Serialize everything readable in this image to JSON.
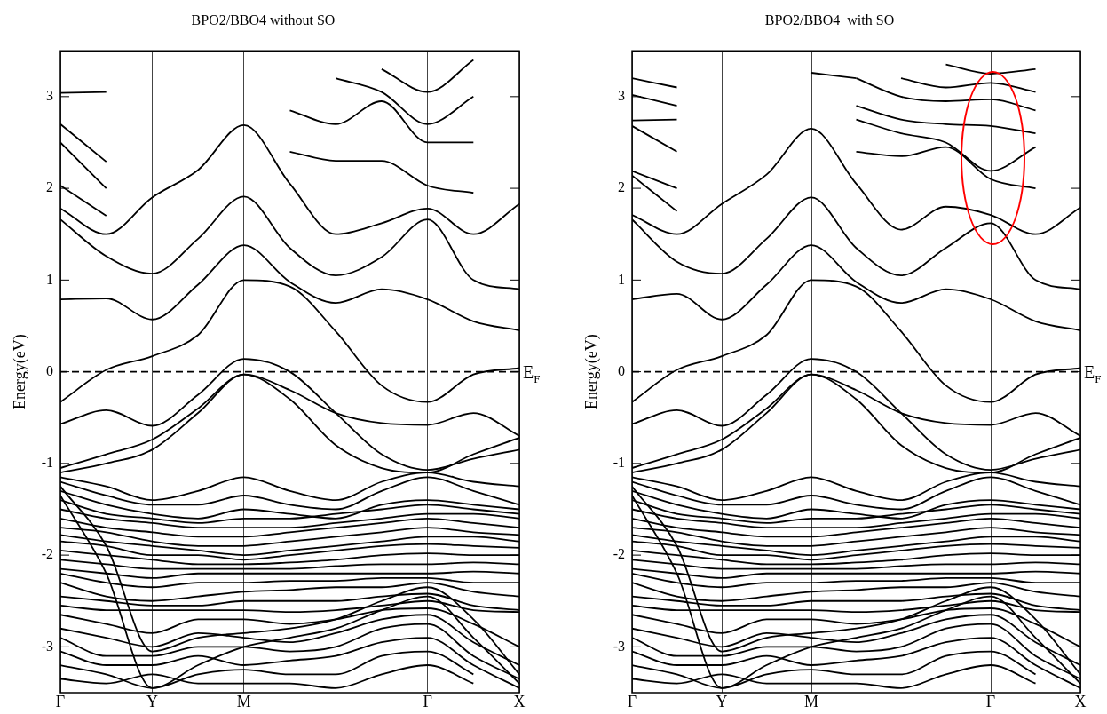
{
  "chart_data": [
    {
      "type": "line",
      "title": "BPO2/BBO4 without SO",
      "ylabel": "Energy(eV)",
      "categories": [
        "Γ",
        null,
        "Y",
        null,
        "M",
        null,
        null,
        null,
        "Γ",
        null,
        "X"
      ],
      "ylim": [
        -3.5,
        3.5
      ],
      "yticks": [
        -3,
        -2,
        -1,
        0,
        1,
        2,
        3
      ],
      "grid": "x",
      "legend": false,
      "marker": "none",
      "ref_lines": [
        {
          "axis": "y",
          "value": 0,
          "label": "E$_{F}$",
          "line_style": "dashed",
          "color": "#000000"
        }
      ],
      "series": [
        {
          "color": "#000000",
          "values": [
            -0.33,
            0.02,
            0.17,
            0.4,
            1.0,
            0.93,
            0.44,
            -0.15,
            -0.33,
            -0.03,
            0.04
          ]
        },
        {
          "color": "#000000",
          "values": [
            0.79,
            0.8,
            0.57,
            0.95,
            1.38,
            0.98,
            0.75,
            0.9,
            0.79,
            0.55,
            0.45
          ]
        },
        {
          "color": "#000000",
          "values": [
            1.66,
            1.26,
            1.07,
            1.45,
            1.91,
            1.35,
            1.05,
            1.25,
            1.66,
            1.0,
            0.9
          ]
        },
        {
          "color": "#000000",
          "values": [
            1.78,
            1.5,
            1.9,
            2.2,
            2.69,
            2.05,
            1.5,
            1.62,
            1.78,
            1.5,
            1.83
          ]
        },
        {
          "color": "#000000",
          "values": [
            2.03,
            1.7,
            null,
            null,
            null,
            2.4,
            2.3,
            2.3,
            2.03,
            1.95,
            null
          ]
        },
        {
          "color": "#000000",
          "values": [
            2.5,
            2.0,
            null,
            null,
            null,
            2.85,
            2.7,
            2.95,
            2.5,
            2.5,
            null
          ]
        },
        {
          "color": "#000000",
          "values": [
            2.7,
            2.29,
            null,
            null,
            null,
            null,
            3.2,
            3.05,
            2.7,
            3.0,
            null
          ]
        },
        {
          "color": "#000000",
          "values": [
            3.04,
            3.05,
            null,
            null,
            null,
            null,
            null,
            3.3,
            3.05,
            3.4,
            null
          ]
        },
        {
          "color": "#000000",
          "values": [
            -0.57,
            -0.42,
            -0.59,
            -0.25,
            0.14,
            0.0,
            -0.45,
            -0.9,
            -1.07,
            -0.95,
            -0.85
          ]
        },
        {
          "color": "#000000",
          "values": [
            -1.05,
            -0.9,
            -0.74,
            -0.4,
            -0.03,
            -0.3,
            -0.8,
            -1.05,
            -1.1,
            -0.9,
            -0.72
          ]
        },
        {
          "color": "#000000",
          "values": [
            -1.1,
            -1.0,
            -0.85,
            -0.45,
            -0.03,
            -0.2,
            -0.45,
            -0.56,
            -0.58,
            -0.45,
            -0.7
          ]
        },
        {
          "color": "#000000",
          "values": [
            -1.15,
            -1.25,
            -1.4,
            -1.3,
            -1.15,
            -1.3,
            -1.4,
            -1.2,
            -1.1,
            -1.2,
            -1.25
          ]
        },
        {
          "color": "#000000",
          "values": [
            -1.2,
            -1.35,
            -1.45,
            -1.45,
            -1.35,
            -1.45,
            -1.5,
            -1.3,
            -1.15,
            -1.3,
            -1.45
          ]
        },
        {
          "color": "#000000",
          "values": [
            -1.3,
            -1.45,
            -1.55,
            -1.6,
            -1.5,
            -1.55,
            -1.6,
            -1.45,
            -1.4,
            -1.45,
            -1.5
          ]
        },
        {
          "color": "#000000",
          "values": [
            -1.4,
            -1.55,
            -1.6,
            -1.65,
            -1.6,
            -1.6,
            -1.55,
            -1.5,
            -1.45,
            -1.5,
            -1.55
          ]
        },
        {
          "color": "#000000",
          "values": [
            -1.5,
            -1.6,
            -1.65,
            -1.7,
            -1.7,
            -1.7,
            -1.65,
            -1.6,
            -1.55,
            -1.55,
            -1.6
          ]
        },
        {
          "color": "#000000",
          "values": [
            -1.6,
            -1.7,
            -1.75,
            -1.8,
            -1.8,
            -1.75,
            -1.7,
            -1.65,
            -1.6,
            -1.65,
            -1.7
          ]
        },
        {
          "color": "#000000",
          "values": [
            -1.7,
            -1.75,
            -1.85,
            -1.9,
            -1.9,
            -1.85,
            -1.8,
            -1.75,
            -1.7,
            -1.75,
            -1.78
          ]
        },
        {
          "color": "#000000",
          "values": [
            -1.78,
            -1.85,
            -1.9,
            -1.95,
            -2.0,
            -1.95,
            -1.9,
            -1.85,
            -1.8,
            -1.8,
            -1.85
          ]
        },
        {
          "color": "#000000",
          "values": [
            -1.85,
            -1.9,
            -2.0,
            -2.0,
            -2.05,
            -2.0,
            -1.95,
            -1.9,
            -1.88,
            -1.9,
            -1.92
          ]
        },
        {
          "color": "#000000",
          "values": [
            -1.95,
            -2.0,
            -2.05,
            -2.1,
            -2.1,
            -2.08,
            -2.05,
            -2.0,
            -1.98,
            -2.0,
            -2.0
          ]
        },
        {
          "color": "#000000",
          "values": [
            -2.05,
            -2.1,
            -2.15,
            -2.15,
            -2.15,
            -2.15,
            -2.12,
            -2.1,
            -2.1,
            -2.08,
            -2.1
          ]
        },
        {
          "color": "#000000",
          "values": [
            -2.15,
            -2.2,
            -2.25,
            -2.2,
            -2.2,
            -2.2,
            -2.2,
            -2.2,
            -2.2,
            -2.18,
            -2.2
          ]
        },
        {
          "color": "#000000",
          "values": [
            -2.2,
            -2.3,
            -2.35,
            -2.3,
            -2.3,
            -2.28,
            -2.28,
            -2.25,
            -2.25,
            -2.3,
            -2.3
          ]
        },
        {
          "color": "#000000",
          "values": [
            -2.3,
            -2.45,
            -2.5,
            -2.45,
            -2.4,
            -2.38,
            -2.35,
            -2.35,
            -2.3,
            -2.4,
            -2.45
          ]
        },
        {
          "color": "#000000",
          "values": [
            -2.45,
            -2.5,
            -2.55,
            -2.55,
            -2.5,
            -2.5,
            -2.5,
            -2.45,
            -2.42,
            -2.55,
            -2.6
          ]
        },
        {
          "color": "#000000",
          "values": [
            -2.55,
            -2.6,
            -2.6,
            -2.6,
            -2.6,
            -2.62,
            -2.6,
            -2.55,
            -2.5,
            -2.6,
            -2.62
          ]
        },
        {
          "color": "#000000",
          "values": [
            -2.65,
            -2.75,
            -2.85,
            -2.7,
            -2.7,
            -2.75,
            -2.7,
            -2.6,
            -2.58,
            -2.75,
            -3.0
          ]
        },
        {
          "color": "#000000",
          "values": [
            -2.8,
            -2.9,
            -3.0,
            -2.85,
            -2.9,
            -2.95,
            -2.85,
            -2.7,
            -2.65,
            -2.95,
            -3.2
          ]
        },
        {
          "color": "#000000",
          "values": [
            -2.9,
            -3.1,
            -3.1,
            -3.0,
            -3.0,
            -3.05,
            -3.0,
            -2.8,
            -2.75,
            -3.1,
            -3.35
          ]
        },
        {
          "color": "#000000",
          "values": [
            -3.05,
            -3.2,
            -3.2,
            -3.1,
            -3.2,
            -3.15,
            -3.1,
            -2.95,
            -2.9,
            -3.2,
            -3.45
          ]
        },
        {
          "color": "#000000",
          "values": [
            -3.2,
            -3.3,
            -3.45,
            -3.3,
            -3.25,
            -3.3,
            -3.3,
            -3.1,
            -3.05,
            -3.3,
            null
          ]
        },
        {
          "color": "#000000",
          "values": [
            -3.35,
            -3.4,
            -3.3,
            -3.4,
            -3.4,
            -3.4,
            -3.45,
            -3.3,
            -3.2,
            -3.4,
            null
          ]
        },
        {
          "color": "#000000",
          "values": [
            -1.35,
            -2.2,
            -3.45,
            -3.2,
            -3.0,
            -2.9,
            -2.8,
            -2.6,
            -2.45,
            -2.9,
            -3.4
          ]
        },
        {
          "color": "#000000",
          "values": [
            -1.25,
            -1.9,
            -3.05,
            -2.9,
            -2.85,
            -2.8,
            -2.7,
            -2.5,
            -2.35,
            -2.7,
            -3.3
          ]
        }
      ]
    },
    {
      "type": "line",
      "title": "BPO2/BBO4  with SO",
      "ylabel": "Energy(eV)",
      "categories": [
        "Γ",
        null,
        "Y",
        null,
        "M",
        null,
        null,
        null,
        "Γ",
        null,
        "X"
      ],
      "ylim": [
        -3.5,
        3.5
      ],
      "yticks": [
        -3,
        -2,
        -1,
        0,
        1,
        2,
        3
      ],
      "grid": "x",
      "legend": false,
      "marker": "none",
      "ref_lines": [
        {
          "axis": "y",
          "value": 0,
          "label": "E$_{F}$",
          "line_style": "dashed",
          "color": "#000000"
        }
      ],
      "series": [
        {
          "color": "#000000",
          "values": [
            -0.33,
            0.02,
            0.17,
            0.4,
            1.0,
            0.93,
            0.44,
            -0.15,
            -0.33,
            -0.03,
            0.04
          ]
        },
        {
          "color": "#000000",
          "values": [
            0.79,
            0.85,
            0.57,
            0.95,
            1.38,
            0.98,
            0.75,
            0.9,
            0.79,
            0.55,
            0.45
          ]
        },
        {
          "color": "#000000",
          "values": [
            1.66,
            1.2,
            1.07,
            1.45,
            1.9,
            1.35,
            1.05,
            1.35,
            1.62,
            1.0,
            0.9
          ]
        },
        {
          "color": "#000000",
          "values": [
            1.71,
            1.5,
            1.83,
            2.15,
            2.65,
            2.05,
            1.55,
            1.8,
            1.71,
            1.5,
            1.79
          ]
        },
        {
          "color": "#000000",
          "values": [
            2.14,
            1.75,
            null,
            null,
            null,
            2.4,
            2.35,
            2.45,
            2.1,
            2.0,
            null
          ]
        },
        {
          "color": "#000000",
          "values": [
            2.19,
            2.0,
            null,
            null,
            null,
            2.75,
            2.6,
            2.5,
            2.19,
            2.45,
            null
          ]
        },
        {
          "color": "#000000",
          "values": [
            2.68,
            2.4,
            null,
            null,
            null,
            2.9,
            2.75,
            2.7,
            2.68,
            2.6,
            null
          ]
        },
        {
          "color": "#000000",
          "values": [
            2.74,
            2.75,
            null,
            null,
            null,
            3.2,
            3.0,
            2.95,
            2.97,
            2.85,
            null
          ]
        },
        {
          "color": "#000000",
          "values": [
            3.02,
            2.9,
            null,
            null,
            null,
            null,
            3.2,
            3.1,
            3.15,
            3.05,
            null
          ]
        },
        {
          "color": "#000000",
          "values": [
            3.2,
            3.1,
            null,
            null,
            3.26,
            3.2,
            null,
            3.35,
            3.25,
            3.3,
            null
          ]
        },
        {
          "color": "#000000",
          "values": [
            -0.57,
            -0.42,
            -0.59,
            -0.25,
            0.14,
            0.0,
            -0.45,
            -0.9,
            -1.07,
            -0.95,
            -0.85
          ]
        },
        {
          "color": "#000000",
          "values": [
            -1.05,
            -0.9,
            -0.74,
            -0.4,
            -0.03,
            -0.3,
            -0.8,
            -1.05,
            -1.1,
            -0.9,
            -0.72
          ]
        },
        {
          "color": "#000000",
          "values": [
            -1.1,
            -1.0,
            -0.85,
            -0.45,
            -0.03,
            -0.2,
            -0.45,
            -0.56,
            -0.58,
            -0.45,
            -0.7
          ]
        },
        {
          "color": "#000000",
          "values": [
            -1.15,
            -1.25,
            -1.4,
            -1.3,
            -1.15,
            -1.3,
            -1.4,
            -1.2,
            -1.1,
            -1.2,
            -1.25
          ]
        },
        {
          "color": "#000000",
          "values": [
            -1.2,
            -1.35,
            -1.45,
            -1.45,
            -1.35,
            -1.45,
            -1.5,
            -1.3,
            -1.15,
            -1.3,
            -1.45
          ]
        },
        {
          "color": "#000000",
          "values": [
            -1.3,
            -1.45,
            -1.55,
            -1.6,
            -1.5,
            -1.55,
            -1.6,
            -1.45,
            -1.4,
            -1.45,
            -1.5
          ]
        },
        {
          "color": "#000000",
          "values": [
            -1.4,
            -1.55,
            -1.6,
            -1.65,
            -1.6,
            -1.6,
            -1.55,
            -1.5,
            -1.45,
            -1.5,
            -1.55
          ]
        },
        {
          "color": "#000000",
          "values": [
            -1.5,
            -1.6,
            -1.65,
            -1.7,
            -1.7,
            -1.7,
            -1.65,
            -1.6,
            -1.55,
            -1.55,
            -1.6
          ]
        },
        {
          "color": "#000000",
          "values": [
            -1.6,
            -1.7,
            -1.75,
            -1.8,
            -1.8,
            -1.75,
            -1.7,
            -1.65,
            -1.6,
            -1.65,
            -1.7
          ]
        },
        {
          "color": "#000000",
          "values": [
            -1.7,
            -1.75,
            -1.85,
            -1.9,
            -1.9,
            -1.85,
            -1.8,
            -1.75,
            -1.7,
            -1.75,
            -1.78
          ]
        },
        {
          "color": "#000000",
          "values": [
            -1.78,
            -1.85,
            -1.9,
            -1.95,
            -2.0,
            -1.95,
            -1.9,
            -1.85,
            -1.8,
            -1.8,
            -1.85
          ]
        },
        {
          "color": "#000000",
          "values": [
            -1.85,
            -1.9,
            -2.0,
            -2.0,
            -2.05,
            -2.0,
            -1.95,
            -1.9,
            -1.88,
            -1.9,
            -1.92
          ]
        },
        {
          "color": "#000000",
          "values": [
            -1.95,
            -2.0,
            -2.05,
            -2.1,
            -2.1,
            -2.08,
            -2.05,
            -2.0,
            -1.98,
            -2.0,
            -2.0
          ]
        },
        {
          "color": "#000000",
          "values": [
            -2.05,
            -2.1,
            -2.15,
            -2.15,
            -2.15,
            -2.15,
            -2.12,
            -2.1,
            -2.1,
            -2.08,
            -2.1
          ]
        },
        {
          "color": "#000000",
          "values": [
            -2.15,
            -2.2,
            -2.25,
            -2.2,
            -2.2,
            -2.2,
            -2.2,
            -2.2,
            -2.2,
            -2.18,
            -2.2
          ]
        },
        {
          "color": "#000000",
          "values": [
            -2.2,
            -2.3,
            -2.35,
            -2.3,
            -2.3,
            -2.28,
            -2.28,
            -2.25,
            -2.25,
            -2.3,
            -2.3
          ]
        },
        {
          "color": "#000000",
          "values": [
            -2.3,
            -2.45,
            -2.5,
            -2.45,
            -2.4,
            -2.38,
            -2.35,
            -2.35,
            -2.3,
            -2.4,
            -2.45
          ]
        },
        {
          "color": "#000000",
          "values": [
            -2.45,
            -2.5,
            -2.55,
            -2.55,
            -2.5,
            -2.5,
            -2.5,
            -2.45,
            -2.42,
            -2.55,
            -2.6
          ]
        },
        {
          "color": "#000000",
          "values": [
            -2.55,
            -2.6,
            -2.6,
            -2.6,
            -2.6,
            -2.62,
            -2.6,
            -2.55,
            -2.5,
            -2.6,
            -2.62
          ]
        },
        {
          "color": "#000000",
          "values": [
            -2.65,
            -2.75,
            -2.85,
            -2.7,
            -2.7,
            -2.75,
            -2.7,
            -2.6,
            -2.58,
            -2.75,
            -3.0
          ]
        },
        {
          "color": "#000000",
          "values": [
            -2.8,
            -2.9,
            -3.0,
            -2.85,
            -2.9,
            -2.95,
            -2.85,
            -2.7,
            -2.65,
            -2.95,
            -3.2
          ]
        },
        {
          "color": "#000000",
          "values": [
            -2.9,
            -3.1,
            -3.1,
            -3.0,
            -3.0,
            -3.05,
            -3.0,
            -2.8,
            -2.75,
            -3.1,
            -3.35
          ]
        },
        {
          "color": "#000000",
          "values": [
            -3.05,
            -3.2,
            -3.2,
            -3.1,
            -3.2,
            -3.15,
            -3.1,
            -2.95,
            -2.9,
            -3.2,
            -3.45
          ]
        },
        {
          "color": "#000000",
          "values": [
            -3.2,
            -3.3,
            -3.45,
            -3.3,
            -3.25,
            -3.3,
            -3.3,
            -3.1,
            -3.05,
            -3.3,
            null
          ]
        },
        {
          "color": "#000000",
          "values": [
            -3.35,
            -3.4,
            -3.3,
            -3.4,
            -3.4,
            -3.4,
            -3.45,
            -3.3,
            -3.2,
            -3.4,
            null
          ]
        },
        {
          "color": "#000000",
          "values": [
            -1.35,
            -2.2,
            -3.45,
            -3.2,
            -3.0,
            -2.9,
            -2.8,
            -2.6,
            -2.45,
            -2.9,
            -3.4
          ]
        },
        {
          "color": "#000000",
          "values": [
            -1.25,
            -1.9,
            -3.05,
            -2.9,
            -2.85,
            -2.8,
            -2.7,
            -2.5,
            -2.35,
            -2.7,
            -3.3
          ]
        }
      ]
    }
  ]
}
